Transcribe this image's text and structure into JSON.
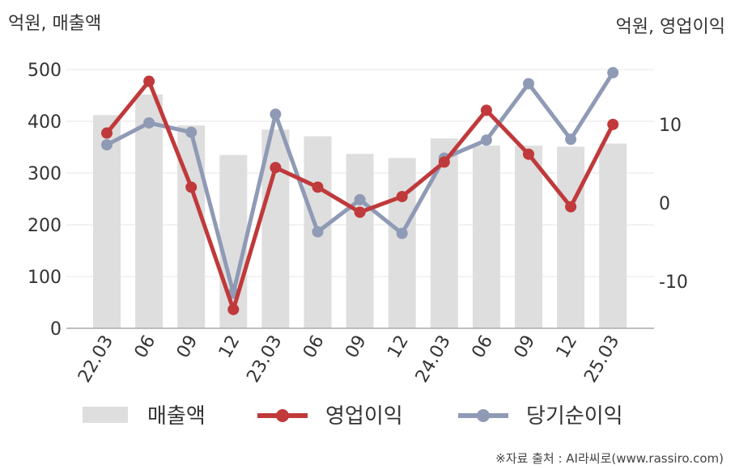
{
  "chart_data": {
    "type": "bar+line",
    "left_axis_title": "억원, 매출액",
    "right_axis_title": "억원, 영업이익",
    "categories": [
      "22.03",
      "06",
      "09",
      "12",
      "23.03",
      "06",
      "09",
      "12",
      "24.03",
      "06",
      "09",
      "12",
      "25.03"
    ],
    "left_ylim": [
      0,
      500
    ],
    "left_ticks": [
      "0",
      "100",
      "200",
      "300",
      "400",
      "500"
    ],
    "right_ylim": [
      -16,
      17
    ],
    "right_ticks": [
      {
        "value": -10,
        "label": "-10"
      },
      {
        "value": 0,
        "label": "0"
      },
      {
        "value": 10,
        "label": "10"
      }
    ],
    "grid": true,
    "series": [
      {
        "name": "매출액",
        "kind": "bar",
        "axis": "left",
        "color": "#dedede",
        "values": [
          412,
          452,
          392,
          335,
          384,
          371,
          337,
          329,
          367,
          353,
          353,
          351,
          357
        ]
      },
      {
        "name": "영업이익",
        "kind": "line",
        "axis": "right",
        "color": "#c0393b",
        "values": [
          8.9,
          15.5,
          2.0,
          -13.6,
          4.5,
          2.0,
          -1.2,
          0.8,
          5.2,
          11.8,
          6.2,
          -0.5,
          10.0
        ]
      },
      {
        "name": "당기순이익",
        "kind": "line",
        "axis": "right",
        "color": "#8f9ab5",
        "values": [
          7.4,
          10.2,
          9.0,
          -11.5,
          11.3,
          -3.7,
          0.4,
          -3.9,
          5.7,
          8.0,
          15.2,
          8.1,
          16.6
        ]
      }
    ],
    "legend": {
      "placement": "bottom"
    },
    "source": "※자료 출처 : AI라씨로(www.rassiro.com)"
  }
}
